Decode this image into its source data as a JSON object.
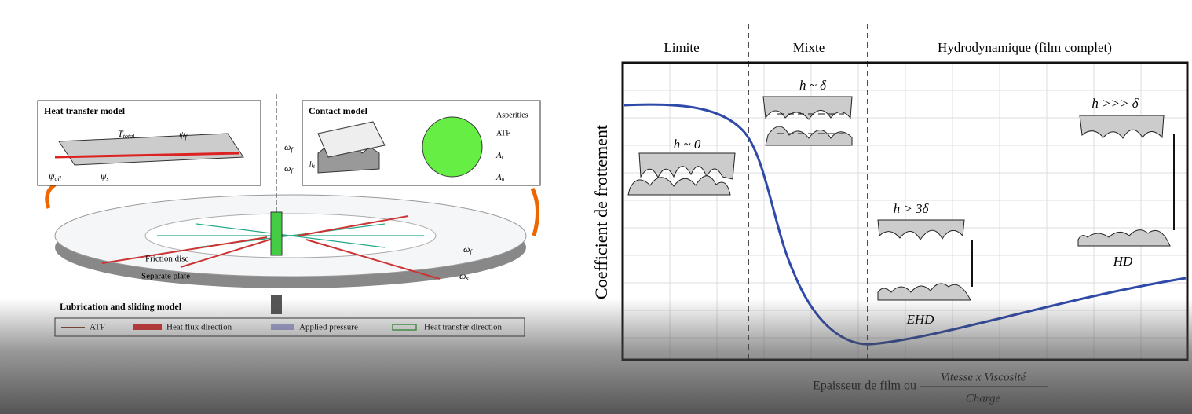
{
  "left": {
    "heat_model": {
      "title": "Heat transfer model",
      "t_total": {
        "symbol": "T",
        "sub": "total"
      },
      "psi_f": {
        "symbol": "ψ",
        "sub": "f"
      },
      "psi_s": {
        "symbol": "ψ",
        "sub": "s"
      },
      "psi_oil": {
        "symbol": "ψ",
        "sub": "oil"
      }
    },
    "contact_model": {
      "title": "Contact model",
      "asperities": "Asperities",
      "atf": "ATF",
      "ar": {
        "symbol": "A",
        "sub": "r"
      },
      "an": {
        "symbol": "A",
        "sub": "n"
      },
      "h": {
        "symbol": "h",
        "sub": "t"
      }
    },
    "omega_f": {
      "symbol": "ω",
      "sub": "f"
    },
    "omega_s": {
      "symbol": "ω",
      "sub": "s"
    },
    "friction_disc": "Friction disc",
    "separate_plate": "Separate plate",
    "section_title": "Lubrication and sliding model",
    "legend": [
      "ATF",
      "Heat flux direction",
      "Applied pressure",
      "Heat transfer direction"
    ]
  },
  "right": {
    "regimes": [
      "Limite",
      "Mixte",
      "Hydrodynamique (film complet)"
    ],
    "y_label": "Coefficient de frottement",
    "x_label": "Epaisseur de film ou",
    "x_fraction": {
      "numerator": "Vitesse x Viscosité",
      "denominator": "Charge"
    },
    "annotations": [
      "h ~ 0",
      "h ~ δ",
      "h > 3δ",
      "h >>> δ",
      "EHD",
      "HD"
    ]
  }
}
